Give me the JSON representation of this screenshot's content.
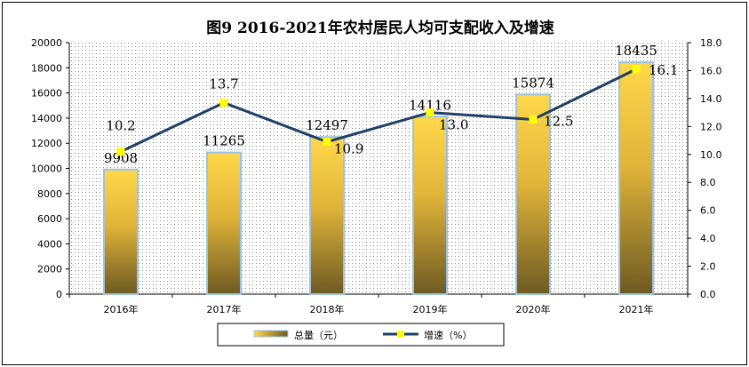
{
  "chart_data": {
    "type": "bar+line",
    "title": "图9  2016-2021年农村居民人均可支配收入及增速",
    "categories": [
      "2016年",
      "2017年",
      "2018年",
      "2019年",
      "2020年",
      "2021年"
    ],
    "series": [
      {
        "name": "总量（元）",
        "type": "bar",
        "axis": "left",
        "values": [
          9908,
          11265,
          12497,
          14116,
          15874,
          18435
        ],
        "labels": [
          "9908",
          "11265",
          "12497",
          "14116",
          "15874",
          "18435"
        ]
      },
      {
        "name": "增速（%）",
        "type": "line",
        "axis": "right",
        "values": [
          10.2,
          13.7,
          10.9,
          13.0,
          12.5,
          16.1
        ],
        "labels": [
          "10.2",
          "13.7",
          "10.9",
          "13.0",
          "12.5",
          "16.1"
        ]
      }
    ],
    "y_left": {
      "min": 0,
      "max": 20000,
      "ticks": [
        "0",
        "2000",
        "4000",
        "6000",
        "8000",
        "10000",
        "12000",
        "14000",
        "16000",
        "18000",
        "20000"
      ]
    },
    "y_right": {
      "min": 0,
      "max": 18,
      "ticks": [
        "0.0",
        "2.0",
        "4.0",
        "6.0",
        "8.0",
        "10.0",
        "12.0",
        "14.0",
        "16.0",
        "18.0"
      ]
    },
    "legend_position": "bottom",
    "grid": false
  },
  "colors": {
    "bar_top": "#ffd84a",
    "bar_mid": "#e0b43a",
    "bar_bottom": "#6e5a22",
    "bar_edge": "#9cc3e6",
    "line": "#1f3f66",
    "marker": "#ffff00",
    "plot_dots": "#8a8a8a"
  }
}
